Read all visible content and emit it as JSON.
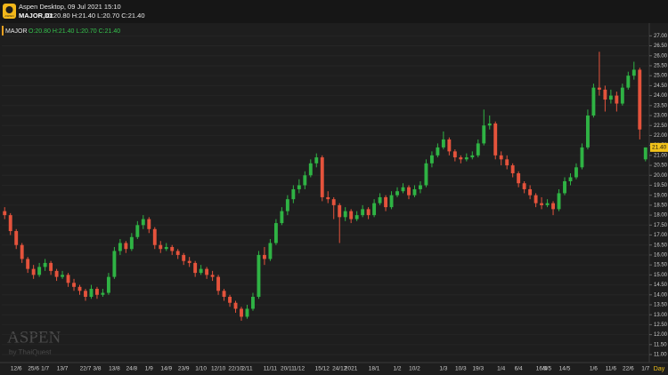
{
  "header": {
    "app_title": "Aspen Desktop, 09 Jul 2021 15:10",
    "symbol": "MAJOR,D1",
    "ohlc": "O:20.80 H:21.40 L:20.70 C:21.40",
    "logo": "ASPEN"
  },
  "watermark": {
    "brand": "ASPEN",
    "by": "by ThaiQuest"
  },
  "chart_data": {
    "type": "candlestick",
    "symbol": "MAJOR",
    "ohlc_text": "O:20.80 H:21.40 L:20.70 C:21.40",
    "timeframe": "Day",
    "up_color": "#2fb344",
    "down_color": "#e5533c",
    "grid": true,
    "ylim": [
      10.6,
      27.55
    ],
    "yticks": [
      {
        "value": 11,
        "label": "11.00"
      },
      {
        "value": 11.5,
        "label": "11.50"
      },
      {
        "value": 12,
        "label": "12.00"
      },
      {
        "value": 12.5,
        "label": "12.50"
      },
      {
        "value": 13,
        "label": "13.00"
      },
      {
        "value": 13.5,
        "label": "13.50"
      },
      {
        "value": 14,
        "label": "14.00"
      },
      {
        "value": 14.5,
        "label": "14.50"
      },
      {
        "value": 15,
        "label": "15.00"
      },
      {
        "value": 15.5,
        "label": "15.50"
      },
      {
        "value": 16,
        "label": "16.00"
      },
      {
        "value": 16.5,
        "label": "16.50"
      },
      {
        "value": 17,
        "label": "17.00"
      },
      {
        "value": 17.5,
        "label": "17.50"
      },
      {
        "value": 18,
        "label": "18.00"
      },
      {
        "value": 18.5,
        "label": "18.50"
      },
      {
        "value": 19,
        "label": "19.00"
      },
      {
        "value": 19.5,
        "label": "19.50"
      },
      {
        "value": 20,
        "label": "20.00"
      },
      {
        "value": 20.5,
        "label": "20.50"
      },
      {
        "value": 21,
        "label": "21.00"
      },
      {
        "value": 21.5,
        "label": "21.50"
      },
      {
        "value": 22,
        "label": "22.00"
      },
      {
        "value": 22.5,
        "label": "22.50"
      },
      {
        "value": 23,
        "label": "23.00"
      },
      {
        "value": 23.5,
        "label": "23.50"
      },
      {
        "value": 24,
        "label": "24.00"
      },
      {
        "value": 24.5,
        "label": "24.50"
      },
      {
        "value": 25,
        "label": "25.00"
      },
      {
        "value": 25.5,
        "label": "25.50"
      },
      {
        "value": 26,
        "label": "26.00"
      },
      {
        "value": 26.5,
        "label": "26.50"
      },
      {
        "value": 27,
        "label": "27.00"
      }
    ],
    "price_tag": {
      "value": 21.4,
      "label": "21.40"
    },
    "categories": [
      null,
      null,
      "12/6",
      null,
      null,
      "25/6",
      null,
      "1/7",
      null,
      null,
      "13/7",
      null,
      null,
      null,
      "22/7",
      null,
      "3/8",
      null,
      null,
      "13/8",
      null,
      null,
      "24/8",
      null,
      null,
      "1/9",
      null,
      null,
      "14/9",
      null,
      null,
      "23/9",
      null,
      null,
      "1/10",
      null,
      null,
      "12/10",
      null,
      null,
      "22/10",
      null,
      "2/11",
      null,
      null,
      null,
      "11/11",
      null,
      null,
      "20/11",
      null,
      "1/12",
      null,
      null,
      null,
      "15/12",
      null,
      null,
      "24/12",
      null,
      "2021",
      null,
      null,
      null,
      "18/1",
      null,
      null,
      null,
      "1/2",
      null,
      null,
      "10/2",
      null,
      null,
      null,
      null,
      "1/3",
      null,
      null,
      "10/3",
      null,
      null,
      "19/3",
      null,
      null,
      null,
      "1/4",
      null,
      null,
      "6/4",
      null,
      null,
      null,
      "16/4",
      "5/5",
      null,
      null,
      "14/5",
      null,
      null,
      null,
      null,
      "1/6",
      null,
      null,
      "11/6",
      null,
      null,
      "22/6",
      null,
      null,
      "1/7"
    ],
    "candles": [
      [
        18.2,
        18.4,
        17.8,
        18.0
      ],
      [
        18.0,
        18.1,
        17.0,
        17.2
      ],
      [
        17.2,
        17.3,
        16.3,
        16.5
      ],
      [
        16.5,
        16.6,
        15.6,
        15.8
      ],
      [
        15.8,
        15.9,
        15.1,
        15.3
      ],
      [
        15.3,
        15.5,
        14.8,
        15.0
      ],
      [
        15.0,
        15.6,
        14.9,
        15.4
      ],
      [
        15.4,
        15.8,
        15.2,
        15.6
      ],
      [
        15.6,
        15.7,
        15.0,
        15.2
      ],
      [
        15.2,
        15.3,
        14.7,
        14.9
      ],
      [
        14.9,
        15.2,
        14.8,
        15.0
      ],
      [
        15.0,
        15.1,
        14.4,
        14.6
      ],
      [
        14.6,
        14.8,
        14.2,
        14.4
      ],
      [
        14.4,
        14.5,
        14.0,
        14.2
      ],
      [
        14.2,
        14.3,
        13.7,
        13.9
      ],
      [
        13.9,
        14.5,
        13.8,
        14.3
      ],
      [
        14.3,
        14.4,
        13.8,
        14.0
      ],
      [
        14.0,
        14.3,
        13.9,
        14.1
      ],
      [
        14.1,
        15.1,
        14.0,
        14.9
      ],
      [
        14.9,
        16.4,
        14.8,
        16.2
      ],
      [
        16.2,
        16.8,
        16.0,
        16.6
      ],
      [
        16.6,
        16.7,
        16.1,
        16.3
      ],
      [
        16.3,
        17.1,
        16.2,
        16.9
      ],
      [
        16.9,
        17.7,
        16.8,
        17.5
      ],
      [
        17.5,
        18.0,
        17.3,
        17.8
      ],
      [
        17.8,
        17.9,
        17.1,
        17.3
      ],
      [
        17.3,
        17.4,
        16.3,
        16.5
      ],
      [
        16.5,
        16.7,
        16.1,
        16.3
      ],
      [
        16.3,
        16.6,
        16.2,
        16.4
      ],
      [
        16.4,
        16.5,
        16.0,
        16.2
      ],
      [
        16.2,
        16.3,
        15.8,
        16.0
      ],
      [
        16.0,
        16.1,
        15.5,
        15.7
      ],
      [
        15.7,
        15.9,
        15.4,
        15.6
      ],
      [
        15.6,
        15.7,
        14.9,
        15.1
      ],
      [
        15.1,
        15.5,
        15.0,
        15.3
      ],
      [
        15.3,
        15.4,
        14.8,
        15.0
      ],
      [
        15.0,
        15.2,
        14.7,
        14.9
      ],
      [
        14.9,
        15.0,
        14.0,
        14.2
      ],
      [
        14.2,
        14.3,
        13.7,
        13.9
      ],
      [
        13.9,
        14.0,
        13.4,
        13.6
      ],
      [
        13.6,
        13.7,
        13.1,
        13.3
      ],
      [
        13.3,
        13.4,
        12.7,
        12.9
      ],
      [
        12.9,
        13.5,
        12.8,
        13.3
      ],
      [
        13.3,
        14.1,
        13.2,
        13.9
      ],
      [
        13.9,
        16.2,
        13.8,
        16.0
      ],
      [
        16.0,
        16.4,
        15.5,
        15.8
      ],
      [
        15.8,
        16.8,
        15.7,
        16.6
      ],
      [
        16.6,
        17.8,
        16.5,
        17.6
      ],
      [
        17.6,
        18.4,
        17.5,
        18.2
      ],
      [
        18.2,
        19.0,
        18.0,
        18.8
      ],
      [
        18.8,
        19.5,
        18.6,
        19.3
      ],
      [
        19.3,
        19.8,
        19.1,
        19.5
      ],
      [
        19.5,
        20.2,
        19.3,
        20.0
      ],
      [
        20.0,
        20.8,
        19.9,
        20.6
      ],
      [
        20.6,
        21.1,
        20.4,
        20.9
      ],
      [
        20.9,
        21.0,
        18.7,
        18.9
      ],
      [
        18.9,
        19.2,
        18.6,
        18.8
      ],
      [
        18.8,
        18.9,
        17.8,
        18.5
      ],
      [
        18.5,
        18.6,
        16.6,
        17.9
      ],
      [
        17.9,
        18.4,
        17.7,
        18.2
      ],
      [
        18.2,
        18.3,
        17.6,
        17.8
      ],
      [
        17.8,
        18.2,
        17.7,
        18.0
      ],
      [
        18.0,
        18.5,
        17.9,
        18.3
      ],
      [
        18.3,
        18.4,
        17.8,
        18.0
      ],
      [
        18.0,
        18.8,
        17.9,
        18.6
      ],
      [
        18.6,
        19.1,
        18.5,
        18.9
      ],
      [
        18.9,
        19.0,
        18.2,
        18.4
      ],
      [
        18.4,
        19.2,
        18.3,
        19.0
      ],
      [
        19.0,
        19.4,
        18.9,
        19.2
      ],
      [
        19.2,
        19.6,
        19.1,
        19.4
      ],
      [
        19.4,
        19.5,
        18.8,
        19.0
      ],
      [
        19.0,
        19.5,
        18.9,
        19.3
      ],
      [
        19.3,
        19.7,
        19.1,
        19.5
      ],
      [
        19.5,
        20.8,
        19.4,
        20.6
      ],
      [
        20.6,
        21.2,
        20.4,
        21.0
      ],
      [
        21.0,
        21.6,
        20.9,
        21.4
      ],
      [
        21.4,
        22.2,
        21.3,
        21.8
      ],
      [
        21.8,
        21.9,
        21.0,
        21.2
      ],
      [
        21.2,
        21.3,
        20.7,
        20.9
      ],
      [
        20.9,
        21.0,
        20.6,
        20.8
      ],
      [
        20.8,
        21.1,
        20.7,
        20.9
      ],
      [
        20.9,
        21.2,
        20.8,
        21.0
      ],
      [
        21.0,
        21.8,
        20.9,
        21.6
      ],
      [
        21.6,
        23.3,
        21.5,
        22.5
      ],
      [
        22.5,
        23.0,
        22.3,
        22.6
      ],
      [
        22.6,
        22.7,
        20.8,
        21.0
      ],
      [
        21.0,
        21.2,
        20.5,
        20.8
      ],
      [
        20.8,
        21.0,
        20.3,
        20.5
      ],
      [
        20.5,
        20.6,
        19.9,
        20.1
      ],
      [
        20.1,
        20.2,
        19.4,
        19.6
      ],
      [
        19.6,
        19.7,
        19.1,
        19.3
      ],
      [
        19.3,
        19.5,
        18.8,
        19.0
      ],
      [
        19.0,
        19.1,
        18.4,
        18.6
      ],
      [
        18.6,
        18.9,
        18.3,
        18.5
      ],
      [
        18.5,
        18.8,
        18.4,
        18.6
      ],
      [
        18.6,
        18.7,
        18.0,
        18.3
      ],
      [
        18.3,
        19.3,
        18.2,
        19.1
      ],
      [
        19.1,
        19.9,
        19.0,
        19.7
      ],
      [
        19.7,
        20.1,
        19.5,
        19.9
      ],
      [
        19.9,
        20.6,
        19.8,
        20.4
      ],
      [
        20.4,
        21.6,
        20.3,
        21.4
      ],
      [
        21.4,
        23.3,
        21.3,
        23.0
      ],
      [
        23.0,
        24.6,
        22.9,
        24.4
      ],
      [
        24.4,
        26.2,
        24.0,
        24.3
      ],
      [
        24.3,
        24.5,
        23.2,
        23.8
      ],
      [
        23.8,
        24.3,
        23.6,
        24.0
      ],
      [
        24.0,
        24.2,
        23.2,
        23.6
      ],
      [
        23.6,
        24.6,
        23.5,
        24.4
      ],
      [
        24.4,
        25.2,
        24.3,
        25.0
      ],
      [
        25.0,
        25.7,
        24.8,
        25.3
      ],
      [
        25.3,
        25.4,
        21.8,
        22.3
      ],
      [
        20.8,
        21.4,
        20.7,
        21.4
      ]
    ]
  }
}
